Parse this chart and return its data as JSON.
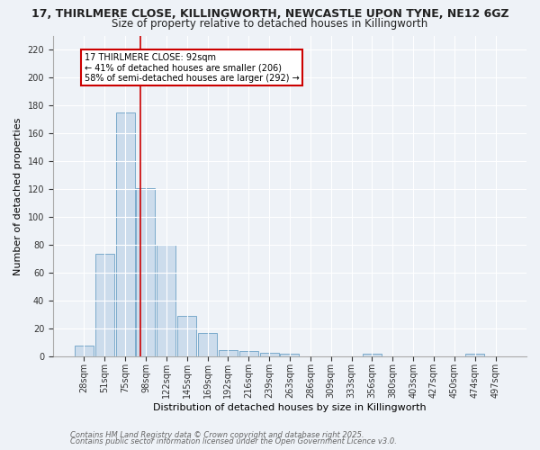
{
  "title1": "17, THIRLMERE CLOSE, KILLINGWORTH, NEWCASTLE UPON TYNE, NE12 6GZ",
  "title2": "Size of property relative to detached houses in Killingworth",
  "xlabel": "Distribution of detached houses by size in Killingworth",
  "ylabel": "Number of detached properties",
  "bar_labels": [
    "28sqm",
    "51sqm",
    "75sqm",
    "98sqm",
    "122sqm",
    "145sqm",
    "169sqm",
    "192sqm",
    "216sqm",
    "239sqm",
    "263sqm",
    "286sqm",
    "309sqm",
    "333sqm",
    "356sqm",
    "380sqm",
    "403sqm",
    "427sqm",
    "450sqm",
    "474sqm",
    "497sqm"
  ],
  "bar_values": [
    8,
    74,
    175,
    121,
    80,
    29,
    17,
    5,
    4,
    3,
    2,
    0,
    0,
    0,
    2,
    0,
    0,
    0,
    0,
    2,
    0
  ],
  "bar_color": "#ccdcec",
  "bar_edgecolor": "#7aaacb",
  "ylim": [
    0,
    230
  ],
  "yticks": [
    0,
    20,
    40,
    60,
    80,
    100,
    120,
    140,
    160,
    180,
    200,
    220
  ],
  "annotation_title": "17 THIRLMERE CLOSE: 92sqm",
  "annotation_line1": "← 41% of detached houses are smaller (206)",
  "annotation_line2": "58% of semi-detached houses are larger (292) →",
  "annotation_box_color": "#ffffff",
  "annotation_border_color": "#cc0000",
  "red_line_color": "#cc0000",
  "footer1": "Contains HM Land Registry data © Crown copyright and database right 2025.",
  "footer2": "Contains public sector information licensed under the Open Government Licence v3.0.",
  "bg_color": "#eef2f7",
  "plot_bg_color": "#eef2f7",
  "title1_fontsize": 9,
  "title2_fontsize": 8.5,
  "tick_fontsize": 7,
  "label_fontsize": 8,
  "footer_fontsize": 6,
  "grid_color": "#ffffff"
}
